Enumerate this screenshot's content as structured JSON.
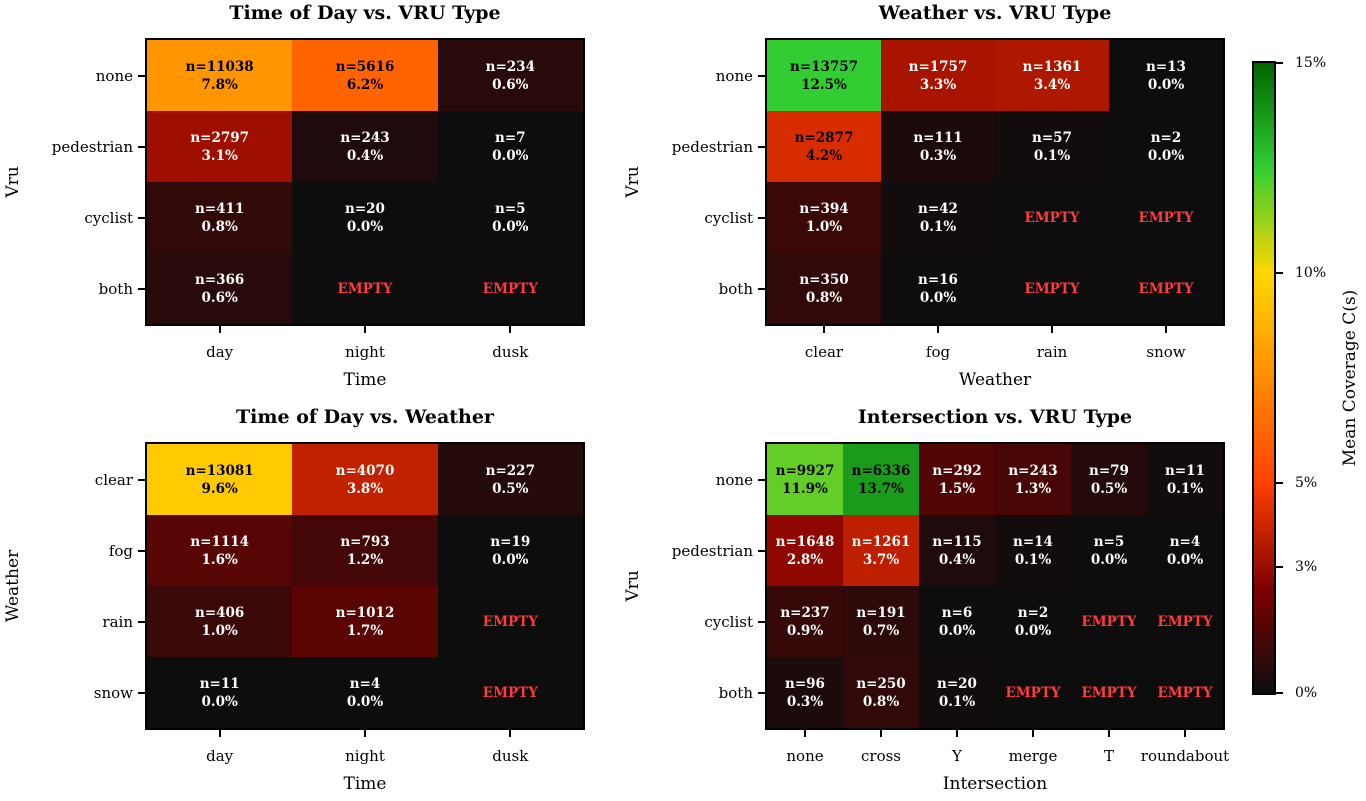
{
  "chart_data": [
    {
      "type": "heatmap",
      "title": "Time of Day vs. VRU Type",
      "xlabel": "Time",
      "ylabel": "Vru",
      "x": [
        "day",
        "night",
        "dusk"
      ],
      "y": [
        "none",
        "pedestrian",
        "cyclist",
        "both"
      ],
      "cells": [
        [
          [
            11038,
            7.8
          ],
          [
            5616,
            6.2
          ],
          [
            234,
            0.6
          ]
        ],
        [
          [
            2797,
            3.1
          ],
          [
            243,
            0.4
          ],
          [
            7,
            0.0
          ]
        ],
        [
          [
            411,
            0.8
          ],
          [
            20,
            0.0
          ],
          [
            5,
            0.0
          ]
        ],
        [
          [
            366,
            0.6
          ],
          null,
          null
        ]
      ]
    },
    {
      "type": "heatmap",
      "title": "Weather vs. VRU Type",
      "xlabel": "Weather",
      "ylabel": "Vru",
      "x": [
        "clear",
        "fog",
        "rain",
        "snow"
      ],
      "y": [
        "none",
        "pedestrian",
        "cyclist",
        "both"
      ],
      "cells": [
        [
          [
            13757,
            12.5
          ],
          [
            1757,
            3.3
          ],
          [
            1361,
            3.4
          ],
          [
            13,
            0.0
          ]
        ],
        [
          [
            2877,
            4.2
          ],
          [
            111,
            0.3
          ],
          [
            57,
            0.1
          ],
          [
            2,
            0.0
          ]
        ],
        [
          [
            394,
            1.0
          ],
          [
            42,
            0.1
          ],
          null,
          null
        ],
        [
          [
            350,
            0.8
          ],
          [
            16,
            0.0
          ],
          null,
          null
        ]
      ]
    },
    {
      "type": "heatmap",
      "title": "Time of Day vs. Weather",
      "xlabel": "Time",
      "ylabel": "Weather",
      "x": [
        "day",
        "night",
        "dusk"
      ],
      "y": [
        "clear",
        "fog",
        "rain",
        "snow"
      ],
      "cells": [
        [
          [
            13081,
            9.6
          ],
          [
            4070,
            3.8
          ],
          [
            227,
            0.5
          ]
        ],
        [
          [
            1114,
            1.6
          ],
          [
            793,
            1.2
          ],
          [
            19,
            0.0
          ]
        ],
        [
          [
            406,
            1.0
          ],
          [
            1012,
            1.7
          ],
          null
        ],
        [
          [
            11,
            0.0
          ],
          [
            4,
            0.0
          ],
          null
        ]
      ]
    },
    {
      "type": "heatmap",
      "title": "Intersection vs. VRU Type",
      "xlabel": "Intersection",
      "ylabel": "Vru",
      "x": [
        "none",
        "cross",
        "Y",
        "merge",
        "T",
        "roundabout"
      ],
      "y": [
        "none",
        "pedestrian",
        "cyclist",
        "both"
      ],
      "cells": [
        [
          [
            9927,
            11.9
          ],
          [
            6336,
            13.7
          ],
          [
            292,
            1.5
          ],
          [
            243,
            1.3
          ],
          [
            79,
            0.5
          ],
          [
            11,
            0.1
          ]
        ],
        [
          [
            1648,
            2.8
          ],
          [
            1261,
            3.7
          ],
          [
            115,
            0.4
          ],
          [
            14,
            0.1
          ],
          [
            5,
            0.0
          ],
          [
            4,
            0.0
          ]
        ],
        [
          [
            237,
            0.9
          ],
          [
            191,
            0.7
          ],
          [
            6,
            0.0
          ],
          [
            2,
            0.0
          ],
          null,
          null
        ],
        [
          [
            96,
            0.3
          ],
          [
            250,
            0.8
          ],
          [
            20,
            0.1
          ],
          null,
          null,
          null
        ]
      ]
    }
  ],
  "empty_label": "EMPTY",
  "empty_color": "#ff3b3b",
  "colorbar": {
    "label": "Mean Coverage C(s)",
    "range": [
      0,
      15
    ],
    "ticks": [
      0,
      3,
      5,
      10,
      15
    ],
    "tick_labels": [
      "0%",
      "3%",
      "5%",
      "10%",
      "15%"
    ],
    "stops": [
      [
        0,
        "#0d0d0d"
      ],
      [
        2.5,
        "#800000"
      ],
      [
        5,
        "#ff4000"
      ],
      [
        7.5,
        "#ff8c00"
      ],
      [
        10,
        "#ffd700"
      ],
      [
        12.5,
        "#32cd32"
      ],
      [
        15,
        "#006400"
      ]
    ]
  }
}
